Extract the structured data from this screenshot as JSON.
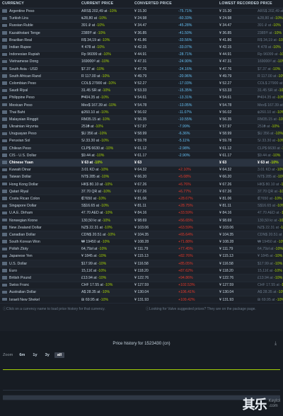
{
  "headers": {
    "currency": "CURRENCY",
    "current_price": "CURRENT PRICE",
    "converted_price": "CONVERTED PRICE",
    "converted_diff": "",
    "lowest_price": "LOWEST RECORDED PRICE",
    "lowest_diff": ""
  },
  "rows": [
    {
      "name": "Argentine Peso",
      "price": "ARS$ 202,49 at",
      "disc": "-10%",
      "conv": "¥ 15.30",
      "diff": "-75.71%",
      "diffc": "neg",
      "low": "ARS$ 202,49 at",
      "lowdisc": "-10%"
    },
    {
      "name": "Turkish Lira",
      "price": "₺28,80 at",
      "disc": "-10%",
      "conv": "¥ 24.98",
      "diff": "-60.33%",
      "diffc": "neg",
      "low": "₺28,80 at",
      "lowdisc": "-10%"
    },
    {
      "name": "Russian Ruble",
      "price": "391 ₽ at",
      "disc": "-10%",
      "conv": "¥ 34.47",
      "diff": "-45.28%",
      "diffc": "neg",
      "low": "391 ₽ at",
      "lowdisc": "-10%"
    },
    {
      "name": "Kazakhstani Tenge",
      "price": "2385₸ at",
      "disc": "-10%",
      "conv": "¥ 36.85",
      "diff": "-41.50%",
      "diffc": "neg",
      "low": "2385₸ at",
      "lowdisc": "-10%"
    },
    {
      "name": "Brazilian Real",
      "price": "R$ 34,19 at",
      "disc": "-10%",
      "conv": "¥ 41.86",
      "diff": "-33.56%",
      "diffc": "neg",
      "low": "R$ 34,19 at",
      "lowdisc": "-10%"
    },
    {
      "name": "Indian Rupee",
      "price": "₹ 478 at",
      "disc": "-10%",
      "conv": "¥ 42.15",
      "diff": "-33.07%",
      "diffc": "neg",
      "low": "₹ 478 at",
      "lowdisc": "-10%"
    },
    {
      "name": "Indonesian Rupiah",
      "price": "Rp 96099 at",
      "disc": "-10%",
      "conv": "¥ 44.91",
      "diff": "-28.71%",
      "diffc": "neg",
      "low": "Rp 96099 at",
      "lowdisc": "-10%"
    },
    {
      "name": "Vietnamese Dong",
      "price": "169000₫ at",
      "disc": "-10%",
      "conv": "¥ 47.31",
      "diff": "-24.90%",
      "diffc": "neg",
      "low": "169000₫ at",
      "lowdisc": "-10%"
    },
    {
      "name": "South Asia - USD",
      "price": "$7.37 at",
      "disc": "-10%",
      "conv": "¥ 47.76",
      "diff": "-24.16%",
      "diffc": "neg",
      "low": "$7.37 at",
      "lowdisc": "-10%"
    },
    {
      "name": "South African Rand",
      "price": "R 117.00 at",
      "disc": "-10%",
      "conv": "¥ 49.79",
      "diff": "-20.96%",
      "diffc": "neg",
      "low": "R 117.00 at",
      "lowdisc": "-10%"
    },
    {
      "name": "Colombian Peso",
      "price": "COL$ 27900 at",
      "disc": "-10%",
      "conv": "¥ 52.27",
      "diff": "-17.03%",
      "diffc": "neg",
      "low": "COL$ 27900 at",
      "lowdisc": "-10%"
    },
    {
      "name": "Saudi Riyal",
      "price": "31.45 SR at",
      "disc": "-10%",
      "conv": "¥ 53.33",
      "diff": "-15.35%",
      "diffc": "neg",
      "low": "31.45 SR at",
      "lowdisc": "-10%"
    },
    {
      "name": "Philippine Peso",
      "price": "₱404.35 at",
      "disc": "-10%",
      "conv": "¥ 54.61",
      "diff": "-13.31%",
      "diffc": "neg",
      "low": "₱404.35 at",
      "lowdisc": "-10%"
    },
    {
      "name": "Mexican Peso",
      "price": "Mex$ 167.39 at",
      "disc": "-10%",
      "conv": "¥ 54.78",
      "diff": "-13.05%",
      "diffc": "neg",
      "low": "Mex$ 167.39 at",
      "lowdisc": "-10%"
    },
    {
      "name": "Thai Baht",
      "price": "฿260.10 at",
      "disc": "-10%",
      "conv": "¥ 56.02",
      "diff": "-11.07%",
      "diffc": "neg",
      "low": "฿260.10 at",
      "lowdisc": "-10%"
    },
    {
      "name": "Malaysian Ringgit",
      "price": "RM35.15 at",
      "disc": "-10%",
      "conv": "¥ 56.35",
      "diff": "-10.55%",
      "diffc": "neg",
      "low": "RM35.15 at",
      "lowdisc": "-10%"
    },
    {
      "name": "Ukrainian Hryvnia",
      "price": "251₴ at",
      "disc": "-10%",
      "conv": "¥ 57.97",
      "diff": "-7.99%",
      "diffc": "neg",
      "low": "251₴ at",
      "lowdisc": "-10%"
    },
    {
      "name": "Uruguayan Peso",
      "price": "$U 356 at",
      "disc": "-10%",
      "conv": "¥ 58.99",
      "diff": "-6.36%",
      "diffc": "neg",
      "low": "$U 356 at",
      "lowdisc": "-10%"
    },
    {
      "name": "Peruvian Sol",
      "price": "S/.33.30 at",
      "disc": "-10%",
      "conv": "¥ 59.78",
      "diff": "-5.11%",
      "diffc": "neg",
      "low": "S/.33.30 at",
      "lowdisc": "-10%"
    },
    {
      "name": "Chilean Peso",
      "price": "CLP$ 6630 at",
      "disc": "-10%",
      "conv": "¥ 61.12",
      "diff": "-2.98%",
      "diffc": "neg",
      "low": "CLP$ 6630 at",
      "lowdisc": "-10%"
    },
    {
      "name": "CIS - U.S. Dollar",
      "price": "$9.44 at",
      "disc": "-10%",
      "conv": "¥ 61.17",
      "diff": "-2.90%",
      "diffc": "neg",
      "low": "$9.44 at",
      "lowdisc": "-10%"
    },
    {
      "name": "Chinese Yuan",
      "price": "¥ 63 at",
      "disc": "-10%",
      "conv": "¥ 63",
      "diff": "",
      "diffc": "zero",
      "low": "¥ 63 at",
      "lowdisc": "-10%",
      "base": true
    },
    {
      "name": "Kuwaiti Dinar",
      "price": "3.01 KD at",
      "disc": "-10%",
      "conv": "¥ 64.32",
      "diff": "+2.10%",
      "diffc": "pos",
      "low": "3.01 KD at",
      "lowdisc": "-10%"
    },
    {
      "name": "Taiwan Dollar",
      "price": "NT$ 285 at",
      "disc": "-10%",
      "conv": "¥ 66.20",
      "diff": "+5.08%",
      "diffc": "pos",
      "low": "NT$ 285 at",
      "lowdisc": "-10%"
    },
    {
      "name": "Hong Kong Dollar",
      "price": "HK$ 80.10 at",
      "disc": "-10%",
      "conv": "¥ 67.26",
      "diff": "+6.76%",
      "diffc": "pos",
      "low": "HK$ 80.10 at",
      "lowdisc": "-10%"
    },
    {
      "name": "Qatari Riyal",
      "price": "37.70 QR at",
      "disc": "-10%",
      "conv": "¥ 67.26",
      "diff": "+6.77%",
      "diffc": "pos",
      "low": "37.70 QR at",
      "lowdisc": "-10%"
    },
    {
      "name": "Costa Rican Colon",
      "price": "₡7650 at",
      "disc": "-10%",
      "conv": "¥ 81.06",
      "diff": "+28.67%",
      "diffc": "pos",
      "low": "₡7650 at",
      "lowdisc": "-10%"
    },
    {
      "name": "Singapore Dollar",
      "price": "S$16.65 at",
      "disc": "-10%",
      "conv": "¥ 81.11",
      "diff": "+28.75%",
      "diffc": "pos",
      "low": "S$16.65 at",
      "lowdisc": "-10%"
    },
    {
      "name": "U.A.E. Dirham",
      "price": "47.70 AED at",
      "disc": "-10%",
      "conv": "¥ 84.16",
      "diff": "+33.59%",
      "diffc": "pos",
      "low": "47.70 AED at",
      "lowdisc": "-10%"
    },
    {
      "name": "Norwegian Krone",
      "price": "130,50 kr at",
      "disc": "-10%",
      "conv": "¥ 98.69",
      "diff": "+56.65%",
      "diffc": "pos",
      "low": "130,50 kr at",
      "lowdisc": "-10%"
    },
    {
      "name": "New Zealand Dollar",
      "price": "NZ$ 22.31 at",
      "disc": "-10%",
      "conv": "¥ 103.06",
      "diff": "+63.59%",
      "diffc": "pos",
      "low": "NZ$ 22.31 at",
      "lowdisc": "-10%"
    },
    {
      "name": "Canadian Dollar",
      "price": "CDN$ 20.51 at",
      "disc": "-10%",
      "conv": "¥ 104.35",
      "diff": "+65.64%",
      "diffc": "pos",
      "low": "CDN$ 20.51 at",
      "lowdisc": "-10%"
    },
    {
      "name": "South Korean Won",
      "price": "₩ 19450 at",
      "disc": "-10%",
      "conv": "¥ 108.28",
      "diff": "+71.88%",
      "diffc": "pos",
      "low": "₩ 19450 at",
      "lowdisc": "-10%"
    },
    {
      "name": "Polish Zloty",
      "price": "64,79zł at",
      "disc": "-10%",
      "conv": "¥ 111.79",
      "diff": "+77.45%",
      "diffc": "pos",
      "low": "64,79zł at",
      "lowdisc": "-10%"
    },
    {
      "name": "Japanese Yen",
      "price": "¥ 1845 at",
      "disc": "-10%",
      "conv": "¥ 115.13",
      "diff": "+82.76%",
      "diffc": "pos",
      "low": "¥ 1845 at",
      "lowdisc": "-10%"
    },
    {
      "name": "U.S. Dollar",
      "price": "$17.99 at",
      "disc": "-10%",
      "conv": "¥ 116.58",
      "diff": "+85.05%",
      "diffc": "pos",
      "low": "$17.99 at",
      "lowdisc": "-10%"
    },
    {
      "name": "Euro",
      "price": "15,11€ at",
      "disc": "-10%",
      "conv": "¥ 118.20",
      "diff": "+87.62%",
      "diffc": "pos",
      "low": "15,11€ at",
      "lowdisc": "-10%"
    },
    {
      "name": "British Pound",
      "price": "£13.94 at",
      "disc": "-10%",
      "conv": "¥ 122.76",
      "diff": "+94.86%",
      "diffc": "pos",
      "low": "£13.94 at",
      "lowdisc": "-10%"
    },
    {
      "name": "Swiss Franc",
      "price": "CHF 17.55 at",
      "disc": "-10%",
      "conv": "¥ 127.59",
      "diff": "+102.53%",
      "diffc": "pos",
      "low": "CHF 17.55 at",
      "lowdisc": "-10%"
    },
    {
      "name": "Australian Dollar",
      "price": "A$ 28.35 at",
      "disc": "-10%",
      "conv": "¥ 130.04",
      "diff": "+106.41%",
      "diffc": "pos",
      "low": "A$ 28.35 at",
      "lowdisc": "-10%"
    },
    {
      "name": "Israeli New Shekel",
      "price": "₪ 69.95 at",
      "disc": "-10%",
      "conv": "¥ 131.93",
      "diff": "+109.42%",
      "diffc": "pos",
      "low": "₪ 69.95 at",
      "lowdisc": "-10%"
    }
  ],
  "notes": {
    "left": "Click on a currency name to load price history for that currency.",
    "right": "Looking for Valve suggested prices? They are on the package page."
  },
  "history": {
    "title": "Price history for 1523430 (cn)",
    "zoom_label": "Zoom",
    "zoom_options": [
      "6m",
      "1y",
      "3y",
      "all"
    ],
    "zoom_active": "all"
  },
  "watermark": {
    "logo": "其乐",
    "site": "Keylol",
    "domain": ".com"
  }
}
